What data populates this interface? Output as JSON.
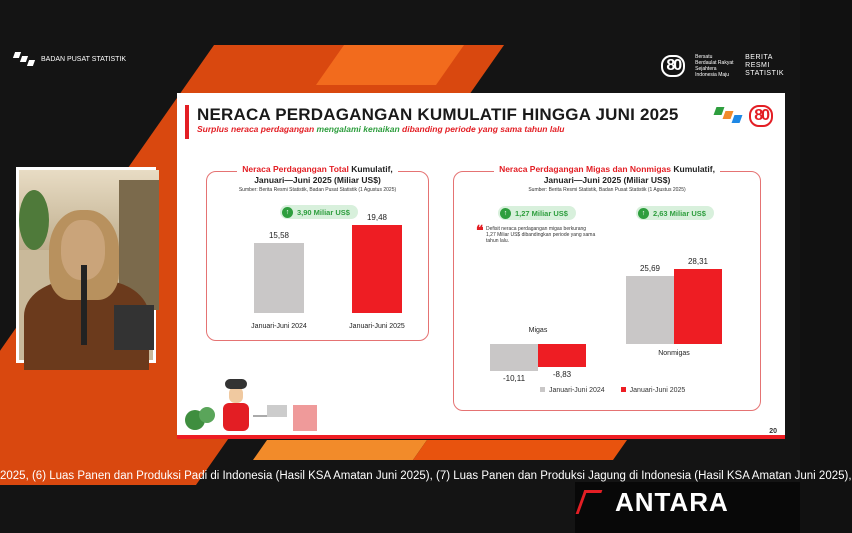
{
  "broadcast": {
    "org_name": "BADAN PUSAT STATISTIK",
    "logo_80_text": "80",
    "tagline_small": "Bersatu Berdaulat Rakyat Sejahtera Indonesia Maju",
    "brs_line1": "BERITA",
    "brs_line2": "RESMI",
    "brs_line3": "STATISTIK",
    "ticker": "2025, (6) Luas Panen dan Produksi  Padi di Indonesia (Hasil KSA Amatan Juni 2025), (7) Luas Panen dan Produksi Jagung di Indonesia (Hasil KSA Amatan Juni 2025),",
    "antara": "ANTARA"
  },
  "slide": {
    "title": "NERACA PERDAGANGAN KUMULATIF HINGGA JUNI 2025",
    "subtitle_pre": "Surplus neraca perdagangan ",
    "subtitle_hl": "mengalami kenaikan",
    "subtitle_post": " dibanding periode yang sama tahun lalu",
    "logo_80": "80",
    "page_number": "20"
  },
  "chart_data": [
    {
      "type": "bar",
      "title_red": "Neraca Perdagangan Total",
      "title_rest": " Kumulatif,",
      "title_line2": "Januari—Juni 2025 (Miliar US$)",
      "source": "Sumber: Berita Resmi Statistik, Badan Pusat Statistik (1 Agustus 2025)",
      "change_label": "3,90 Miliar US$",
      "categories": [
        "Januari-Juni 2024",
        "Januari-Juni 2025"
      ],
      "values": [
        15.58,
        19.48
      ],
      "value_labels": [
        "15,58",
        "19,48"
      ],
      "colors": [
        "#c9c7c7",
        "#ee1d23"
      ]
    },
    {
      "type": "bar",
      "title_red": "Neraca Perdagangan Migas dan Nonmigas",
      "title_rest": " Kumulatif,",
      "title_line2": "Januari—Juni 2025 (Miliar US$)",
      "source": "Sumber: Berita Resmi Statistik, Badan Pusat Statistik (1 Agustus 2025)",
      "categories": [
        "Migas",
        "Nonmigas"
      ],
      "change_labels": [
        "1,27 Miliar US$",
        "2,63 Miliar US$"
      ],
      "note": "Defisit neraca perdagangan migas berkurang 1,27 Miliar US$ dibandingkan periode yang sama tahun lalu.",
      "series": [
        {
          "name": "Januari-Juni 2024",
          "values": [
            -10.11,
            25.69
          ],
          "labels": [
            "-10,11",
            "25,69"
          ],
          "color": "#c9c7c7"
        },
        {
          "name": "Januari-Juni 2025",
          "values": [
            -8.83,
            28.31
          ],
          "labels": [
            "-8,83",
            "28,31"
          ],
          "color": "#ee1d23"
        }
      ]
    }
  ]
}
